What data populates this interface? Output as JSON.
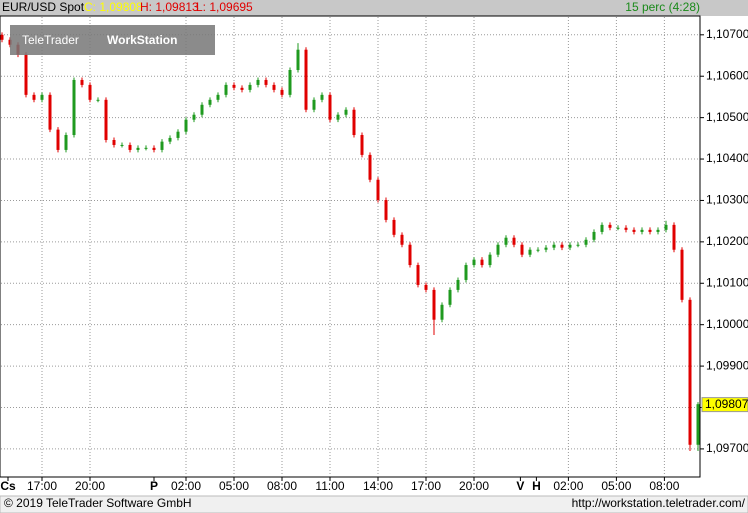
{
  "chart_data": {
    "type": "candlestick",
    "title": "EUR/USD Spot",
    "header": {
      "close": "C: 1,09808",
      "high": "H: 1,09813",
      "low": "L: 1,09695",
      "interval": "15 perc (4:28)"
    },
    "logo": {
      "brand": "TeleTrader",
      "product": "WorkStation"
    },
    "footer": {
      "copyright": "© 2019 TeleTrader Software GmbH",
      "url": "http://workstation.teletrader.com/"
    },
    "up_color": "#1f9a1f",
    "down_color": "#e00000",
    "grid": true,
    "last_price": {
      "value": 1.09807,
      "label": "1,09807"
    },
    "xlim": [
      -2.625,
      41.125
    ],
    "xticks": [
      {
        "value": -2.125,
        "label": "Cs"
      },
      {
        "value": 0,
        "label": "17:00"
      },
      {
        "value": 3,
        "label": "20:00"
      },
      {
        "value": 7,
        "label": "P"
      },
      {
        "value": 9,
        "label": "02:00"
      },
      {
        "value": 12,
        "label": "05:00"
      },
      {
        "value": 15,
        "label": "08:00"
      },
      {
        "value": 18,
        "label": "11:00"
      },
      {
        "value": 21,
        "label": "14:00"
      },
      {
        "value": 24,
        "label": "17:00"
      },
      {
        "value": 27,
        "label": "20:00"
      },
      {
        "value": 29.9,
        "label": "V"
      },
      {
        "value": 30.9,
        "label": "H"
      },
      {
        "value": 32.9,
        "label": "02:00"
      },
      {
        "value": 35.9,
        "label": "05:00"
      },
      {
        "value": 38.9,
        "label": "08:00"
      }
    ],
    "ylim": [
      1.09637,
      1.10743
    ],
    "yticks": [
      {
        "value": 1.097,
        "label": "1,09700"
      },
      {
        "value": 1.098,
        "label": "1,09800"
      },
      {
        "value": 1.099,
        "label": "1,09900"
      },
      {
        "value": 1.1,
        "label": "1,10000"
      },
      {
        "value": 1.101,
        "label": "1,10100"
      },
      {
        "value": 1.102,
        "label": "1,10200"
      },
      {
        "value": 1.103,
        "label": "1,10300"
      },
      {
        "value": 1.104,
        "label": "1,10400"
      },
      {
        "value": 1.105,
        "label": "1,10500"
      },
      {
        "value": 1.106,
        "label": "1,10600"
      },
      {
        "value": 1.107,
        "label": "1,10700"
      }
    ],
    "x": [
      -2.5,
      -2,
      -1.5,
      -1,
      -0.5,
      0,
      0.5,
      1,
      1.5,
      2,
      2.5,
      3,
      3.5,
      4,
      4.5,
      5,
      5.5,
      6,
      6.5,
      7,
      7.5,
      8,
      8.5,
      9,
      9.5,
      10,
      10.5,
      11,
      11.5,
      12,
      12.5,
      13,
      13.5,
      14,
      14.5,
      15,
      15.5,
      16,
      16.5,
      17,
      17.5,
      18,
      18.5,
      19,
      19.5,
      20,
      20.5,
      21,
      21.5,
      22,
      22.5,
      23,
      23.5,
      24,
      24.5,
      25,
      25.5,
      26,
      26.5,
      27,
      27.5,
      28,
      28.5,
      29,
      29.5,
      30,
      30.5,
      31,
      31.5,
      32,
      32.5,
      33,
      33.5,
      34,
      34.5,
      35,
      35.5,
      36,
      36.5,
      37,
      37.5,
      38,
      38.5,
      39,
      39.5,
      40,
      40.5,
      41
    ],
    "open": [
      1.107,
      1.10688,
      1.10676,
      1.10652,
      1.10555,
      1.10543,
      1.10555,
      1.10471,
      1.10422,
      1.10458,
      1.10591,
      1.10579,
      1.10543,
      1.10543,
      1.10446,
      1.10434,
      1.10434,
      1.10422,
      1.10427,
      1.10427,
      1.10422,
      1.10442,
      1.10451,
      1.10466,
      1.10495,
      1.10507,
      1.10531,
      1.10543,
      1.10555,
      1.10579,
      1.10572,
      1.10567,
      1.10579,
      1.10591,
      1.10579,
      1.10567,
      1.10555,
      1.10615,
      1.10664,
      1.10519,
      1.10543,
      1.10555,
      1.10495,
      1.10507,
      1.10519,
      1.10458,
      1.1041,
      1.1035,
      1.10301,
      1.10253,
      1.10217,
      1.10193,
      1.10144,
      1.10096,
      1.10084,
      1.10012,
      1.10048,
      1.10084,
      1.10108,
      1.10144,
      1.10157,
      1.10144,
      1.10169,
      1.10193,
      1.1021,
      1.10193,
      1.10169,
      1.10181,
      1.10181,
      1.10186,
      1.10193,
      1.10186,
      1.10193,
      1.10193,
      1.10205,
      1.10224,
      1.10241,
      1.10234,
      1.10234,
      1.10229,
      1.10224,
      1.10229,
      1.10224,
      1.10229,
      1.10241,
      1.10181,
      1.1006,
      1.0971
    ],
    "high": [
      1.10706,
      1.10694,
      1.10682,
      1.10658,
      1.10561,
      1.10561,
      1.10561,
      1.10477,
      1.10464,
      1.10597,
      1.10597,
      1.10585,
      1.10549,
      1.10549,
      1.10452,
      1.1044,
      1.1044,
      1.10433,
      1.10433,
      1.10433,
      1.10448,
      1.10457,
      1.10472,
      1.10501,
      1.10513,
      1.10537,
      1.10549,
      1.10561,
      1.10585,
      1.10585,
      1.10578,
      1.10585,
      1.10597,
      1.10597,
      1.10585,
      1.10573,
      1.10621,
      1.1068,
      1.1067,
      1.10549,
      1.10561,
      1.10561,
      1.10513,
      1.10525,
      1.10525,
      1.10464,
      1.10416,
      1.10356,
      1.10307,
      1.10259,
      1.10223,
      1.10199,
      1.1015,
      1.10102,
      1.1009,
      1.10054,
      1.1009,
      1.10114,
      1.1015,
      1.10163,
      1.10163,
      1.10175,
      1.10199,
      1.10216,
      1.10216,
      1.10199,
      1.10187,
      1.10187,
      1.10192,
      1.10199,
      1.10199,
      1.10199,
      1.10199,
      1.10211,
      1.1023,
      1.10247,
      1.10247,
      1.1024,
      1.1024,
      1.10235,
      1.10235,
      1.10235,
      1.10235,
      1.10251,
      1.10247,
      1.10187,
      1.10066,
      1.09813
    ],
    "low": [
      1.10682,
      1.1067,
      1.10646,
      1.10549,
      1.10537,
      1.10537,
      1.10465,
      1.10416,
      1.10416,
      1.10452,
      1.10573,
      1.10537,
      1.10537,
      1.1044,
      1.10428,
      1.10428,
      1.10416,
      1.10416,
      1.10421,
      1.10416,
      1.10416,
      1.10436,
      1.10445,
      1.1046,
      1.10489,
      1.10501,
      1.10525,
      1.10537,
      1.10549,
      1.10566,
      1.10561,
      1.10561,
      1.10573,
      1.10573,
      1.10561,
      1.10549,
      1.10549,
      1.10609,
      1.10513,
      1.10513,
      1.10537,
      1.10489,
      1.10489,
      1.10501,
      1.10452,
      1.10404,
      1.10344,
      1.10295,
      1.10247,
      1.10211,
      1.10187,
      1.10138,
      1.1009,
      1.10078,
      1.09975,
      1.10006,
      1.10042,
      1.10078,
      1.10102,
      1.10138,
      1.10138,
      1.10138,
      1.10163,
      1.10187,
      1.10187,
      1.10163,
      1.10163,
      1.10175,
      1.10175,
      1.1018,
      1.1018,
      1.1018,
      1.10187,
      1.10187,
      1.10199,
      1.10218,
      1.10228,
      1.10228,
      1.10223,
      1.10218,
      1.10218,
      1.10218,
      1.10218,
      1.10223,
      1.10175,
      1.10054,
      1.09695,
      1.09695
    ],
    "close": [
      1.10688,
      1.10676,
      1.10652,
      1.10555,
      1.10543,
      1.10555,
      1.10471,
      1.10422,
      1.10458,
      1.10591,
      1.10579,
      1.10543,
      1.10543,
      1.10446,
      1.10434,
      1.10434,
      1.10422,
      1.10427,
      1.10427,
      1.10422,
      1.10442,
      1.10451,
      1.10466,
      1.10495,
      1.10507,
      1.10531,
      1.10543,
      1.10555,
      1.10579,
      1.10572,
      1.10567,
      1.10579,
      1.10591,
      1.10579,
      1.10567,
      1.10555,
      1.10615,
      1.10664,
      1.10519,
      1.10543,
      1.10555,
      1.10495,
      1.10507,
      1.10519,
      1.10458,
      1.1041,
      1.1035,
      1.10301,
      1.10253,
      1.10217,
      1.10193,
      1.10144,
      1.10096,
      1.10084,
      1.10012,
      1.10048,
      1.10084,
      1.10108,
      1.10144,
      1.10157,
      1.10144,
      1.10169,
      1.10193,
      1.1021,
      1.10193,
      1.10169,
      1.10181,
      1.10181,
      1.10186,
      1.10193,
      1.10186,
      1.10193,
      1.10193,
      1.10205,
      1.10224,
      1.10241,
      1.10234,
      1.10234,
      1.10229,
      1.10224,
      1.10229,
      1.10224,
      1.10229,
      1.10241,
      1.10181,
      1.1006,
      1.0971,
      1.09808
    ]
  }
}
